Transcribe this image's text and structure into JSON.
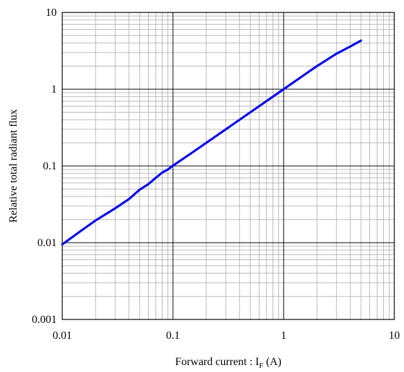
{
  "chart_data": {
    "type": "line",
    "xlabel": {
      "main": "Forward current : I",
      "sub": "F",
      "unit": " (A)"
    },
    "ylabel": "Relative total radiant flux",
    "x_scale": "log",
    "y_scale": "log",
    "xlim": [
      0.01,
      10
    ],
    "ylim": [
      0.001,
      10
    ],
    "grid": true,
    "x_ticks": [
      "0.01",
      "0.1",
      "1",
      "10"
    ],
    "y_ticks": [
      "0.001",
      "0.01",
      "0.1",
      "1",
      "10"
    ],
    "series": [
      {
        "color": "#0000ee",
        "x": [
          0.01,
          0.015,
          0.02,
          0.03,
          0.04,
          0.05,
          0.06,
          0.07,
          0.08,
          0.09,
          0.1,
          0.15,
          0.2,
          0.3,
          0.5,
          0.7,
          1,
          1.5,
          2,
          3,
          4,
          5
        ],
        "y": [
          0.0095,
          0.0145,
          0.0195,
          0.028,
          0.037,
          0.049,
          0.058,
          0.07,
          0.082,
          0.09,
          0.101,
          0.15,
          0.2,
          0.3,
          0.5,
          0.7,
          1.0,
          1.5,
          2.0,
          2.9,
          3.6,
          4.3
        ]
      }
    ]
  }
}
